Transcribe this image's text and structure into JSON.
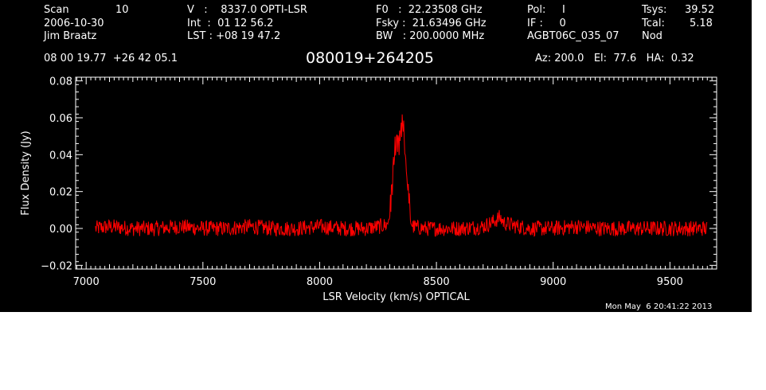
{
  "header": {
    "col1": {
      "l1a": "Scan",
      "l1b": "10",
      "l2": "2006-10-30",
      "l3": "Jim Braatz"
    },
    "col2": {
      "l1": "V   :    8337.0 OPTI-LSR",
      "l2": "Int  :  01 12 56.2",
      "l3": "LST : +08 19 47.2"
    },
    "col3": {
      "l1": "F0   :  22.23508 GHz",
      "l2": "Fsky :  21.63496 GHz",
      "l3": "BW   : 200.0000 MHz"
    },
    "col4": {
      "l1": "Pol:     I",
      "l2": "IF :     0",
      "l3": "AGBT06C_035_07"
    },
    "col5": {
      "l1a": "Tsys:",
      "l1b": "39.52",
      "l2a": "Tcal:",
      "l2b": "5.18",
      "l3": "Nod"
    },
    "coords": "08 00 19.77  +26 42 05.1",
    "source": "080019+264205",
    "azelha": "Az: 200.0   El:  77.6   HA:  0.32",
    "timestamp": "Mon May  6 20:41:22 2013"
  },
  "chart_data": {
    "type": "line",
    "title": "080019+264205",
    "xlabel": "LSR Velocity (km/s) OPTICAL",
    "ylabel": "Flux Density (Jy)",
    "xlim": [
      6955,
      9700
    ],
    "ylim": [
      -0.022,
      0.082
    ],
    "xticks": [
      7000,
      7500,
      8000,
      8500,
      9000,
      9500
    ],
    "xtick_labels": [
      "7000",
      "7500",
      "8000",
      "8500",
      "9000",
      "9500"
    ],
    "yticks": [
      -0.02,
      0.0,
      0.02,
      0.04,
      0.06,
      0.08
    ],
    "ytick_labels": [
      "−0.02",
      "0.00",
      "0.02",
      "0.04",
      "0.06",
      "0.08"
    ],
    "line_color": "#ff0000",
    "series": [
      {
        "x": [
          7040,
          7100,
          7200,
          7300,
          7400,
          7500,
          7600,
          7700,
          7800,
          7900,
          8000,
          8100,
          8200,
          8250,
          8290,
          8300,
          8310,
          8320,
          8330,
          8340,
          8350,
          8355,
          8360,
          8370,
          8380,
          8390,
          8400,
          8450,
          8500,
          8600,
          8700,
          8750,
          8770,
          8790,
          8850,
          8900,
          9000,
          9100,
          9200,
          9300,
          9400,
          9500,
          9600,
          9660
        ],
        "values": [
          0.0,
          0.001,
          0.0,
          0.0,
          0.001,
          0.0,
          0.0,
          0.001,
          0.0,
          0.0,
          0.001,
          0.0,
          0.0,
          0.001,
          0.002,
          0.008,
          0.022,
          0.038,
          0.046,
          0.044,
          0.052,
          0.058,
          0.05,
          0.036,
          0.018,
          0.004,
          0.001,
          0.0,
          0.0,
          0.0,
          0.001,
          0.004,
          0.006,
          0.003,
          0.001,
          0.0,
          0.0,
          0.001,
          0.0,
          0.0,
          0.0,
          0.0,
          0.0,
          0.0
        ]
      }
    ]
  }
}
